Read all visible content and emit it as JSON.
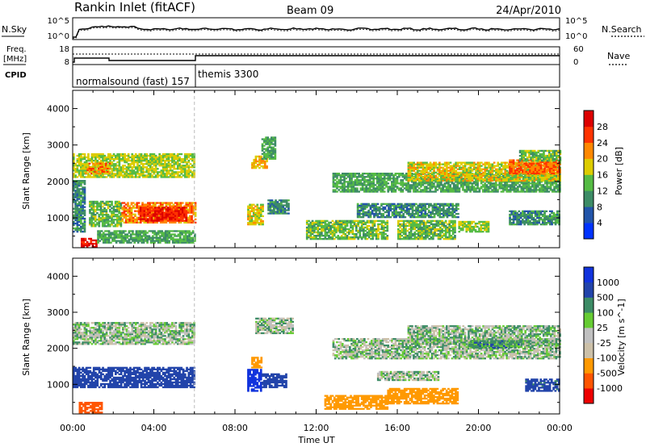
{
  "header": {
    "station": "Rankin Inlet (fitACF)",
    "beam": "Beam 09",
    "date": "24/Apr/2010"
  },
  "top_panels": {
    "nsky_label": "N.Sky",
    "nsky_ticks": [
      "10^5",
      "10^0"
    ],
    "nsearch_label": "N.Search",
    "nsearch_ticks": [
      "10^5",
      "10^0"
    ],
    "freq_label_1": "Freq.",
    "freq_label_2": "[MHz]",
    "freq_ticks": [
      "18",
      "8"
    ],
    "nave_label": "Nave",
    "nave_ticks": [
      "60",
      "0"
    ],
    "cpid_label": "CPID",
    "cpid_segments": [
      {
        "label": "normalsound (fast) 157",
        "start_hour": 0,
        "end_hour": 6
      },
      {
        "label": "themis 3300",
        "start_hour": 6,
        "end_hour": 24
      }
    ]
  },
  "colors": {
    "power": [
      "#0033ff",
      "#2255aa",
      "#3d8c66",
      "#55bb44",
      "#ddcc00",
      "#ff8800",
      "#ff3300",
      "#dd0000"
    ],
    "velocity": [
      "#ee0000",
      "#ff5500",
      "#ff9900",
      "#ccc0a8",
      "#c0c0c0",
      "#66cc33",
      "#3d8c66",
      "#2244aa",
      "#1133dd"
    ]
  },
  "chart_data": [
    {
      "type": "heatmap",
      "panel": "power",
      "ylabel": "Slant Range [km]",
      "ylim": [
        180,
        4500
      ],
      "yticks": [
        1000,
        2000,
        3000,
        4000
      ],
      "xlim": [
        0,
        24
      ],
      "colorbar_label": "Power [dB]",
      "colorbar_ticks": [
        4,
        8,
        12,
        16,
        20,
        24,
        28
      ],
      "colorbar_range": [
        0,
        32
      ],
      "echo_regions": [
        {
          "t0": 0.0,
          "t1": 6.0,
          "r0": 2100,
          "r1": 2750,
          "value": 16
        },
        {
          "t0": 0.6,
          "t1": 1.8,
          "r0": 2200,
          "r1": 2500,
          "value": 22
        },
        {
          "t0": 0.0,
          "t1": 0.6,
          "r0": 600,
          "r1": 2000,
          "value": 10
        },
        {
          "t0": 0.8,
          "t1": 2.4,
          "r0": 750,
          "r1": 1450,
          "value": 14
        },
        {
          "t0": 2.4,
          "t1": 6.0,
          "r0": 850,
          "r1": 1400,
          "value": 22
        },
        {
          "t0": 3.3,
          "t1": 5.6,
          "r0": 900,
          "r1": 1300,
          "value": 28
        },
        {
          "t0": 0.4,
          "t1": 1.2,
          "r0": 180,
          "r1": 450,
          "value": 30
        },
        {
          "t0": 1.2,
          "t1": 6.0,
          "r0": 300,
          "r1": 650,
          "value": 12
        },
        {
          "t0": 8.6,
          "t1": 9.4,
          "r0": 800,
          "r1": 1350,
          "value": 18
        },
        {
          "t0": 8.8,
          "t1": 9.6,
          "r0": 2350,
          "r1": 2700,
          "value": 20
        },
        {
          "t0": 9.3,
          "t1": 10.0,
          "r0": 2600,
          "r1": 3200,
          "value": 12
        },
        {
          "t0": 9.6,
          "t1": 10.6,
          "r0": 1100,
          "r1": 1500,
          "value": 10
        },
        {
          "t0": 11.5,
          "t1": 15.5,
          "r0": 400,
          "r1": 900,
          "value": 14
        },
        {
          "t0": 12.8,
          "t1": 24.0,
          "r0": 1700,
          "r1": 2200,
          "value": 12
        },
        {
          "t0": 16.5,
          "t1": 24.0,
          "r0": 2000,
          "r1": 2500,
          "value": 18
        },
        {
          "t0": 21.5,
          "t1": 24.0,
          "r0": 2200,
          "r1": 2600,
          "value": 24
        },
        {
          "t0": 14.0,
          "t1": 19.0,
          "r0": 1000,
          "r1": 1400,
          "value": 10
        },
        {
          "t0": 16.0,
          "t1": 18.8,
          "r0": 400,
          "r1": 900,
          "value": 14
        },
        {
          "t0": 19.0,
          "t1": 20.5,
          "r0": 600,
          "r1": 900,
          "value": 16
        },
        {
          "t0": 21.5,
          "t1": 24.0,
          "r0": 800,
          "r1": 1200,
          "value": 10
        },
        {
          "t0": 22.0,
          "t1": 24.0,
          "r0": 2550,
          "r1": 2850,
          "value": 14
        }
      ]
    },
    {
      "type": "heatmap",
      "panel": "velocity",
      "xlabel": "Time UT",
      "ylabel": "Slant Range [km]",
      "ylim": [
        180,
        4500
      ],
      "yticks": [
        1000,
        2000,
        3000,
        4000
      ],
      "xlim": [
        0,
        24
      ],
      "xticks": [
        "00:00",
        "04:00",
        "08:00",
        "12:00",
        "16:00",
        "20:00",
        "00:00"
      ],
      "colorbar_label": "Velocity [m s^-1]",
      "colorbar_ticks": [
        "1000",
        "500",
        "100",
        "25",
        "-25",
        "-100",
        "-500",
        "-1000"
      ],
      "echo_regions": [
        {
          "t0": 0.0,
          "t1": 6.0,
          "r0": 2100,
          "r1": 2700,
          "value": 0
        },
        {
          "t0": 0.0,
          "t1": 6.0,
          "r0": 900,
          "r1": 1450,
          "value": 300
        },
        {
          "t0": 0.3,
          "t1": 1.4,
          "r0": 200,
          "r1": 500,
          "value": -700
        },
        {
          "t0": 8.6,
          "t1": 9.3,
          "r0": 800,
          "r1": 1400,
          "value": 800
        },
        {
          "t0": 9.3,
          "t1": 10.5,
          "r0": 900,
          "r1": 1300,
          "value": 200
        },
        {
          "t0": 8.8,
          "t1": 9.3,
          "r0": 1450,
          "r1": 1750,
          "value": -300
        },
        {
          "t0": 9.0,
          "t1": 10.8,
          "r0": 2400,
          "r1": 2850,
          "value": 0
        },
        {
          "t0": 12.4,
          "t1": 15.5,
          "r0": 300,
          "r1": 700,
          "value": -400
        },
        {
          "t0": 15.5,
          "t1": 19.0,
          "r0": 450,
          "r1": 900,
          "value": -250
        },
        {
          "t0": 12.8,
          "t1": 24.0,
          "r0": 1700,
          "r1": 2250,
          "value": 0
        },
        {
          "t0": 16.5,
          "t1": 24.0,
          "r0": 2100,
          "r1": 2600,
          "value": 10
        },
        {
          "t0": 19.5,
          "t1": 22.0,
          "r0": 2000,
          "r1": 2200,
          "value": 60
        },
        {
          "t0": 22.3,
          "t1": 24.0,
          "r0": 800,
          "r1": 1150,
          "value": 150
        },
        {
          "t0": 15.0,
          "t1": 18.0,
          "r0": 1100,
          "r1": 1350,
          "value": 0
        }
      ]
    }
  ]
}
